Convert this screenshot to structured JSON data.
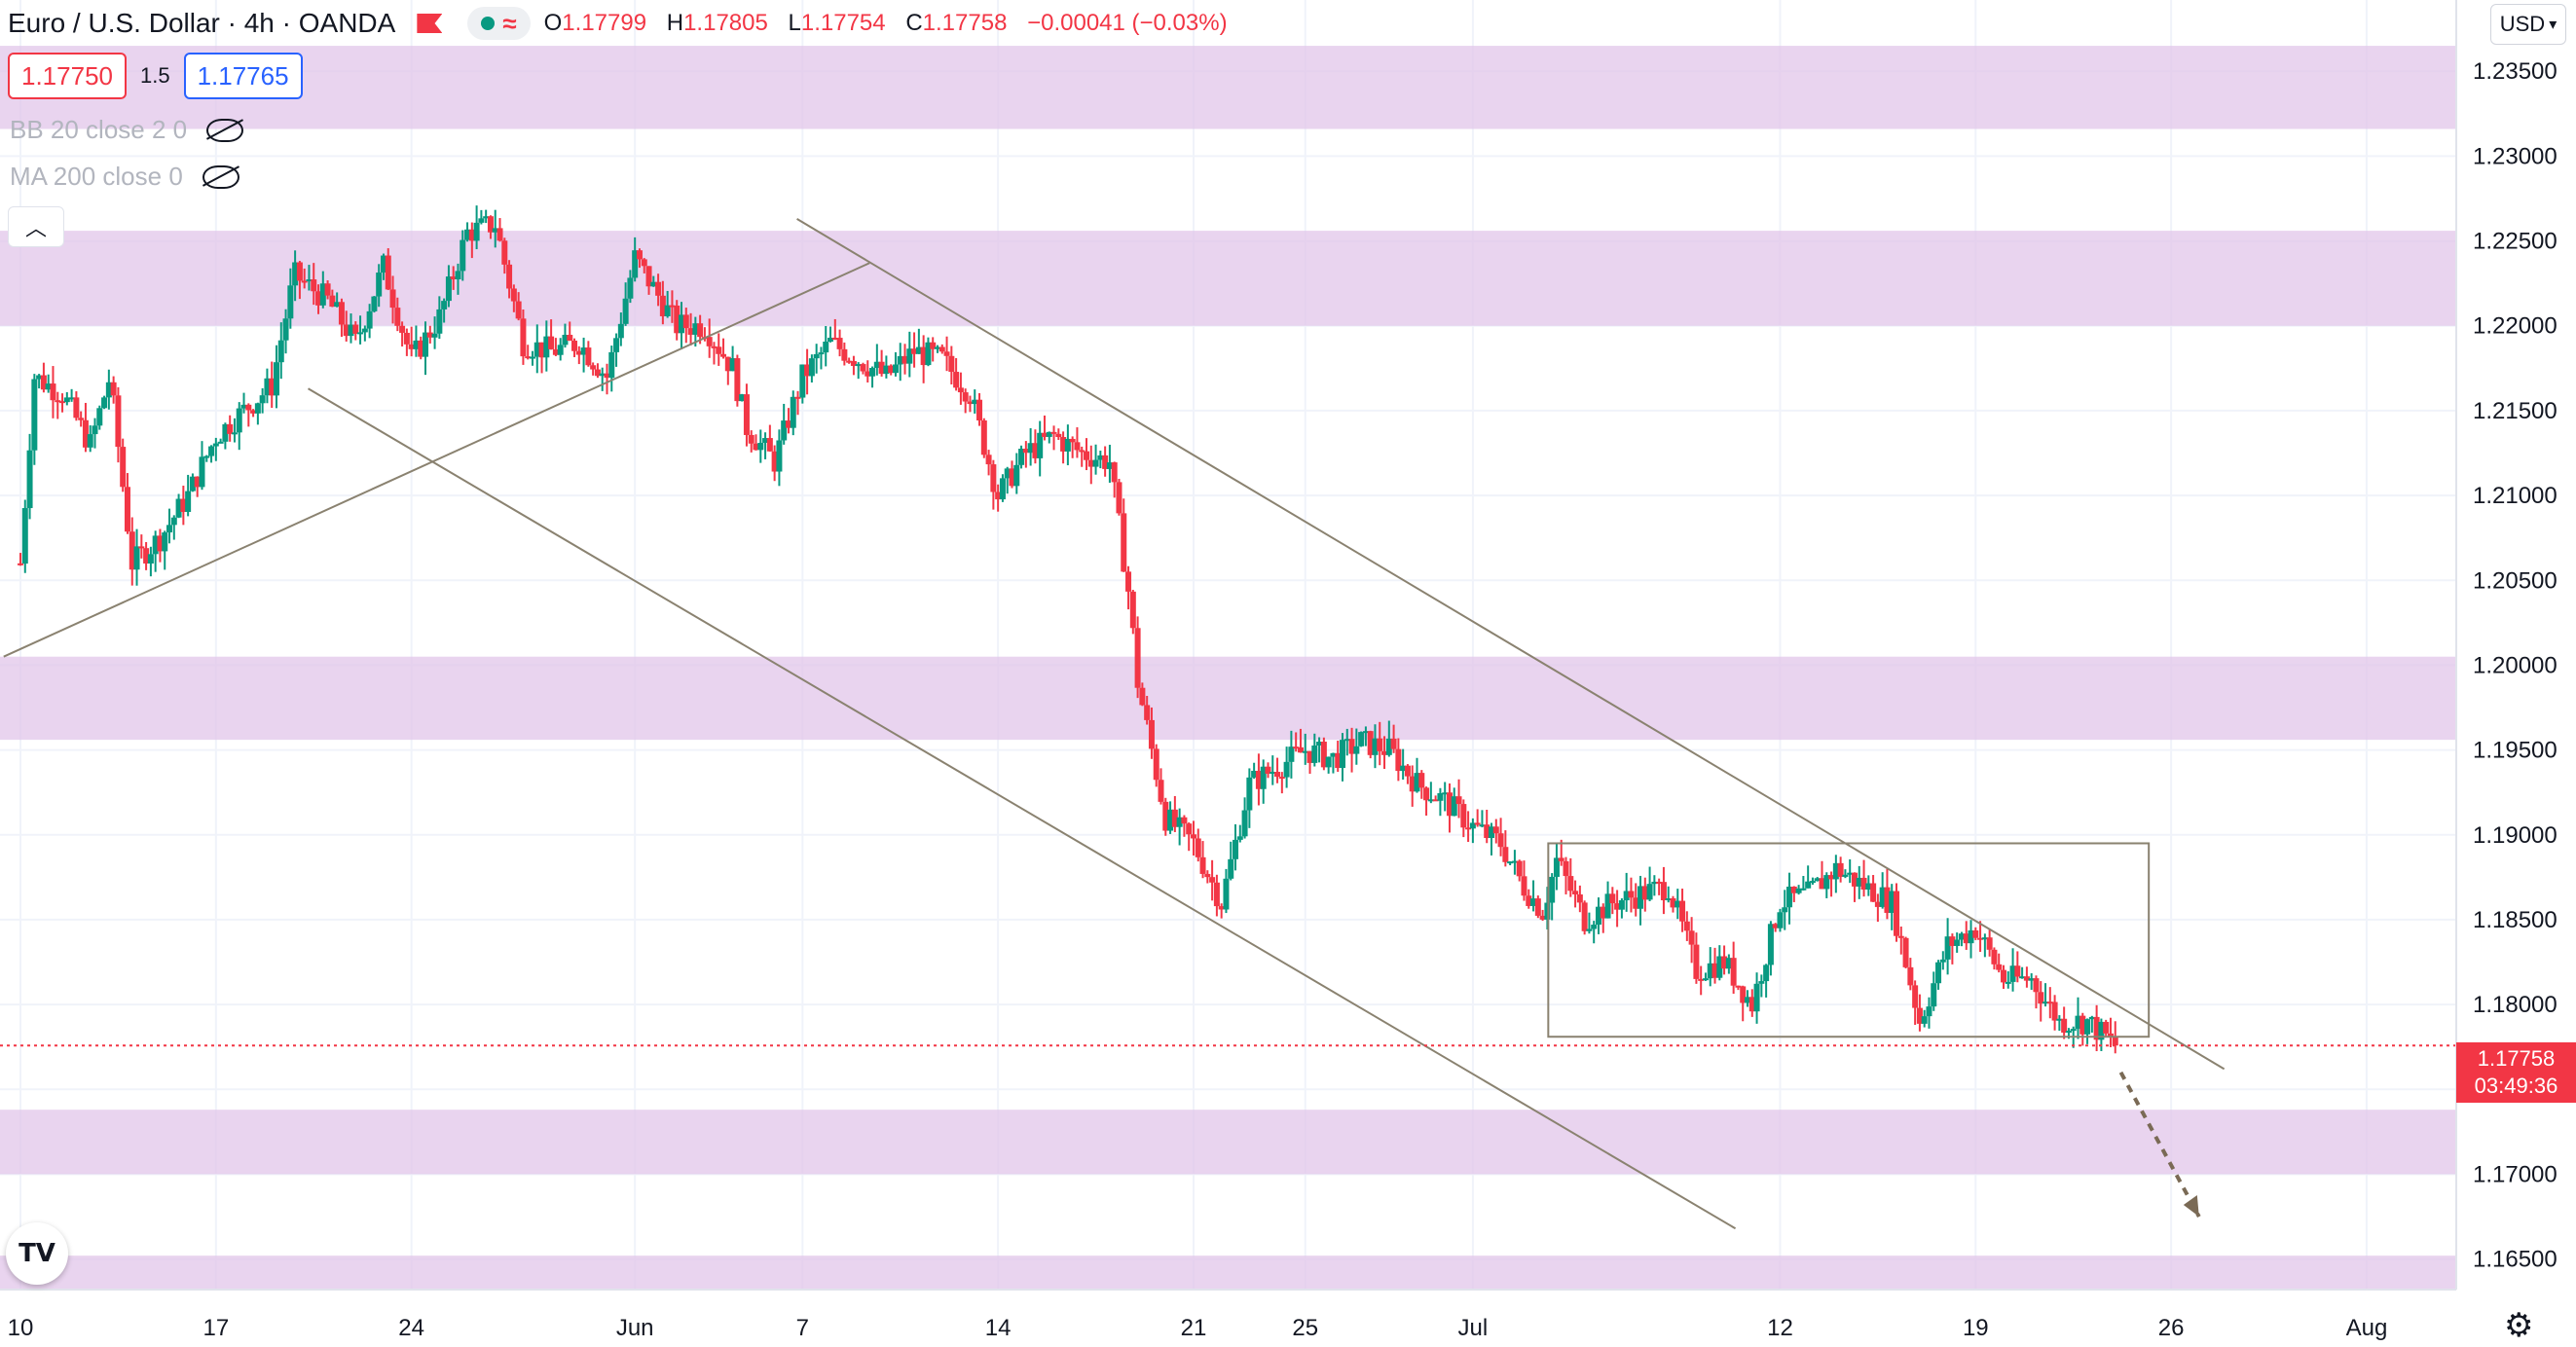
{
  "header": {
    "symbol": "Euro / U.S. Dollar · 4h · OANDA",
    "ohlc": {
      "o_label": "O",
      "o": "1.17799",
      "h_label": "H",
      "h": "1.17805",
      "l_label": "L",
      "l": "1.17754",
      "c_label": "C",
      "c": "1.17758",
      "change": "−0.00041 (−0.03%)"
    },
    "wave_icon": "≈"
  },
  "quote": {
    "bid": "1.17750",
    "spread": "1.5",
    "ask": "1.17765"
  },
  "indicators": [
    {
      "label": "BB 20 close 2 0"
    },
    {
      "label": "MA 200 close 0"
    }
  ],
  "currency_button": "USD",
  "current_price": {
    "value": "1.17758",
    "countdown": "03:49:36"
  },
  "colors": {
    "up": "#089981",
    "down": "#f23645",
    "zone": "#e1c6e9",
    "line": "#8a8270"
  },
  "chart_data": {
    "type": "candlestick",
    "y_ticks": [
      "1.23500",
      "1.23000",
      "1.22500",
      "1.22000",
      "1.21500",
      "1.21000",
      "1.20500",
      "1.20000",
      "1.19500",
      "1.19000",
      "1.18500",
      "1.18000",
      "1.17500",
      "1.17000",
      "1.16500"
    ],
    "y_range": [
      1.1632,
      1.2392
    ],
    "x_ticks": [
      {
        "label": "10",
        "day": 0
      },
      {
        "label": "17",
        "day": 7
      },
      {
        "label": "24",
        "day": 14
      },
      {
        "label": "Jun",
        "day": 22
      },
      {
        "label": "7",
        "day": 28
      },
      {
        "label": "14",
        "day": 35
      },
      {
        "label": "21",
        "day": 42
      },
      {
        "label": "25",
        "day": 46
      },
      {
        "label": "Jul",
        "day": 52
      },
      {
        "label": "12",
        "day": 63
      },
      {
        "label": "19",
        "day": 70
      },
      {
        "label": "26",
        "day": 77
      },
      {
        "label": "Aug",
        "day": 84
      }
    ],
    "zones": [
      [
        1.2316,
        1.2365
      ],
      [
        1.22,
        1.2256
      ],
      [
        1.1956,
        1.2005
      ],
      [
        1.17,
        1.1738
      ],
      [
        1.1632,
        1.1652
      ]
    ],
    "trendlines": [
      {
        "from": [
          -0.6,
          1.2005
        ],
        "to": [
          30.4,
          1.2237
        ]
      },
      {
        "from": [
          27.8,
          1.2263
        ],
        "to": [
          78.9,
          1.1762
        ]
      },
      {
        "from": [
          10.3,
          1.2163
        ],
        "to": [
          61.4,
          1.1668
        ]
      }
    ],
    "range_box": {
      "day_start": 54.7,
      "day_end": 76.2,
      "top": 1.1895,
      "bottom": 1.1781
    },
    "projection": {
      "from": [
        75.2,
        1.176
      ],
      "to": [
        78.0,
        1.1675
      ]
    },
    "current_price": 1.17758,
    "anchors": [
      [
        0,
        1.206
      ],
      [
        0.5,
        1.217
      ],
      [
        1.5,
        1.216
      ],
      [
        2.5,
        1.213
      ],
      [
        3.2,
        1.217
      ],
      [
        4,
        1.206
      ],
      [
        5,
        1.2075
      ],
      [
        6,
        1.21
      ],
      [
        7,
        1.2135
      ],
      [
        8,
        1.215
      ],
      [
        9,
        1.2165
      ],
      [
        9.8,
        1.223
      ],
      [
        11,
        1.2215
      ],
      [
        12,
        1.219
      ],
      [
        13,
        1.2235
      ],
      [
        14,
        1.218
      ],
      [
        15,
        1.2205
      ],
      [
        16,
        1.2255
      ],
      [
        17,
        1.226
      ],
      [
        18,
        1.219
      ],
      [
        19,
        1.2185
      ],
      [
        20,
        1.219
      ],
      [
        21,
        1.217
      ],
      [
        22,
        1.224
      ],
      [
        23.5,
        1.22
      ],
      [
        24.5,
        1.22
      ],
      [
        25.5,
        1.2175
      ],
      [
        26,
        1.214
      ],
      [
        27,
        1.212
      ],
      [
        28,
        1.217
      ],
      [
        29,
        1.219
      ],
      [
        30,
        1.218
      ],
      [
        31,
        1.217
      ],
      [
        32,
        1.2185
      ],
      [
        33,
        1.218
      ],
      [
        34,
        1.216
      ],
      [
        35,
        1.21
      ],
      [
        36,
        1.2125
      ],
      [
        37,
        1.2135
      ],
      [
        38,
        1.2125
      ],
      [
        39,
        1.212
      ],
      [
        39.7,
        1.204
      ],
      [
        40,
        1.199
      ],
      [
        40.5,
        1.195
      ],
      [
        41,
        1.191
      ],
      [
        42,
        1.1895
      ],
      [
        43,
        1.186
      ],
      [
        44,
        1.193
      ],
      [
        45,
        1.194
      ],
      [
        46,
        1.195
      ],
      [
        47,
        1.1945
      ],
      [
        48,
        1.1955
      ],
      [
        49,
        1.195
      ],
      [
        50,
        1.193
      ],
      [
        51,
        1.192
      ],
      [
        52,
        1.1905
      ],
      [
        53,
        1.1895
      ],
      [
        53.8,
        1.187
      ],
      [
        54.5,
        1.1855
      ],
      [
        55,
        1.1885
      ],
      [
        56,
        1.185
      ],
      [
        57,
        1.186
      ],
      [
        58,
        1.1865
      ],
      [
        59,
        1.187
      ],
      [
        60,
        1.182
      ],
      [
        61,
        1.1825
      ],
      [
        62,
        1.18
      ],
      [
        63,
        1.186
      ],
      [
        64,
        1.1865
      ],
      [
        65,
        1.188
      ],
      [
        66,
        1.187
      ],
      [
        67,
        1.186
      ],
      [
        68,
        1.179
      ],
      [
        69,
        1.1835
      ],
      [
        70,
        1.1845
      ],
      [
        71,
        1.1815
      ],
      [
        72,
        1.1815
      ],
      [
        73,
        1.179
      ],
      [
        74,
        1.179
      ],
      [
        75,
        1.1776
      ]
    ]
  }
}
